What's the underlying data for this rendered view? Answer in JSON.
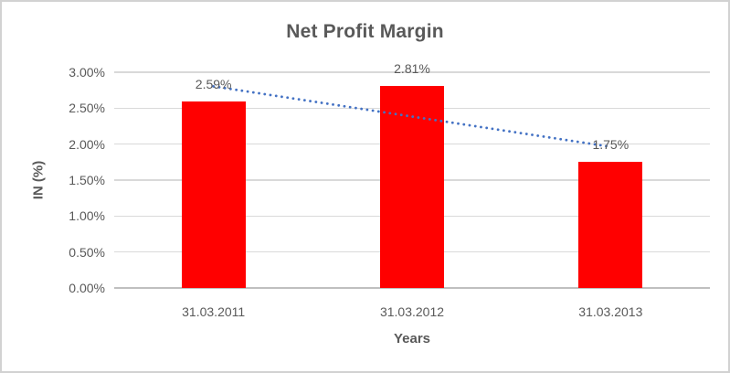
{
  "frame": {
    "background": "#FFFFFF",
    "border_color": "#D2D2D2"
  },
  "chart_data": {
    "type": "bar",
    "title": "Net Profit Margin",
    "categories": [
      "31.03.2011",
      "31.03.2012",
      "31.03.2013"
    ],
    "values": [
      2.59,
      2.81,
      1.75
    ],
    "data_labels": [
      "2.59%",
      "2.81%",
      "1.75%"
    ],
    "xlabel": "Years",
    "ylabel": "IN (%)",
    "ylim": [
      0,
      3
    ],
    "yticks": [
      {
        "value": 0,
        "label": "0.00%"
      },
      {
        "value": 0.5,
        "label": "0.50%"
      },
      {
        "value": 1,
        "label": "1.00%"
      },
      {
        "value": 1.5,
        "label": "1.50%"
      },
      {
        "value": 2,
        "label": "2.00%"
      },
      {
        "value": 2.5,
        "label": "2.50%"
      },
      {
        "value": 3,
        "label": "3.00%"
      }
    ],
    "grid": true,
    "legend": "none",
    "bar_color": "#FF0000",
    "trendline": {
      "type": "linear",
      "style": "dotted",
      "color": "#4472C4",
      "start_value": 2.8033,
      "end_value": 1.9633
    },
    "text_color": "#595959",
    "gridline_color": "#D9D9D9",
    "axis_line_color": "#BFBFBF"
  }
}
